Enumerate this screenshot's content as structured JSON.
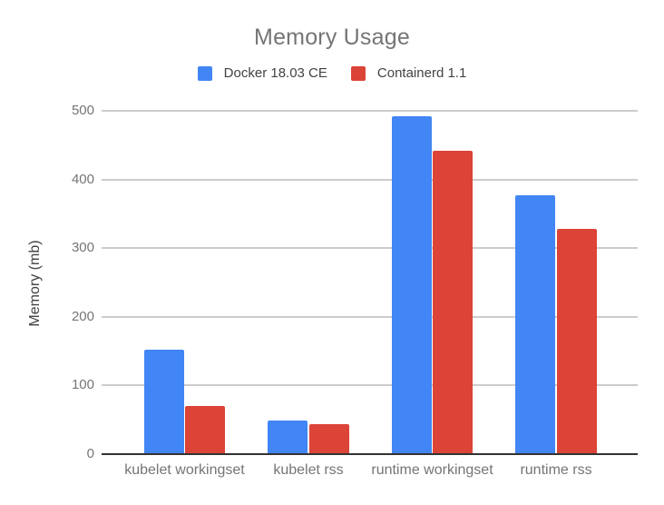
{
  "chart_data": {
    "type": "bar",
    "title": "Memory Usage",
    "ylabel": "Memory (mb)",
    "xlabel": "",
    "categories": [
      "kubelet workingset",
      "kubelet rss",
      "runtime workingset",
      "runtime rss"
    ],
    "series": [
      {
        "name": "Docker 18.03 CE",
        "color": "#4285f4",
        "values": [
          152,
          49,
          492,
          377
        ]
      },
      {
        "name": "Containerd 1.1",
        "color": "#db4437",
        "values": [
          70,
          43,
          442,
          328
        ]
      }
    ],
    "ylim": [
      0,
      500
    ],
    "yticks": [
      0,
      100,
      200,
      300,
      400,
      500
    ],
    "grid": true,
    "legend_position": "top",
    "axis_color": "#333333",
    "grid_color": "#cccccc"
  }
}
